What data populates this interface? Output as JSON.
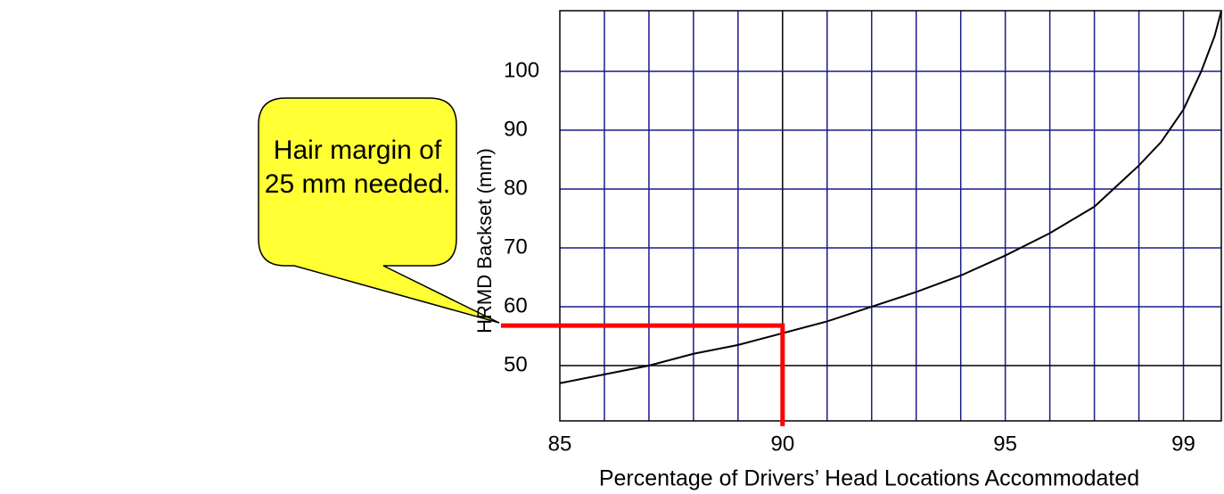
{
  "chart_data": {
    "type": "line",
    "ylabel": "HRMD Backset (mm)",
    "xlabel": "Percentage of Drivers’ Head Locations Accommodated",
    "series": [
      {
        "name": "HRMD Backset",
        "color": "#000000",
        "x": [
          85,
          86,
          87,
          88,
          89,
          90,
          91,
          92,
          93,
          94,
          95,
          96,
          97,
          98,
          98.5,
          99,
          99.4,
          99.7,
          99.85
        ],
        "values": [
          47,
          48.5,
          50,
          52,
          53.5,
          55.5,
          57.5,
          60,
          62.5,
          65.3,
          68.7,
          72.5,
          77,
          84,
          88,
          93.5,
          100,
          106,
          110.3
        ]
      }
    ],
    "xlim": [
      85,
      99.85
    ],
    "ylim": [
      40.6,
      110.3
    ],
    "xticks": [
      85,
      90,
      95,
      99
    ],
    "yticks": [
      50,
      60,
      70,
      80,
      90,
      100
    ],
    "xgrid": [
      86,
      87,
      88,
      89,
      90,
      91,
      92,
      93,
      94,
      95,
      96,
      97,
      98,
      99
    ],
    "grid": true,
    "grid_color": "#1a1a8c",
    "highlight_x": 90,
    "highlight_y": 50,
    "reference": {
      "x": 90,
      "y": 56.8,
      "color": "#ff0000"
    },
    "callout": {
      "lines": [
        "Hair margin of",
        "25 mm needed."
      ],
      "color": "#ffff33"
    }
  }
}
